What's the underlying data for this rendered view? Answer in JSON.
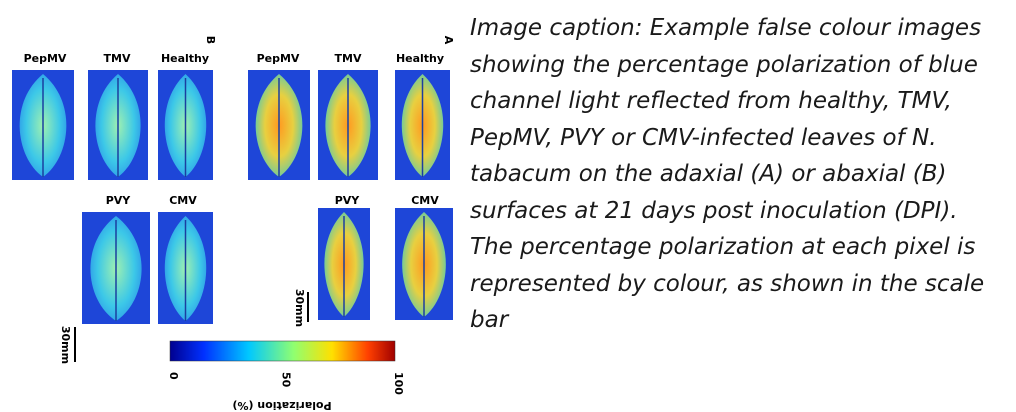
{
  "figure": {
    "panel_b": {
      "label": "B",
      "top_labels": [
        "PepMV",
        "TMV",
        "Healthy"
      ],
      "bottom_labels": [
        "PVY",
        "CMV"
      ],
      "scale": "30mm"
    },
    "panel_a": {
      "label": "A",
      "top_labels": [
        "PepMV",
        "TMV",
        "Healthy"
      ],
      "bottom_labels": [
        "PVY",
        "CMV"
      ],
      "scale": "30mm"
    },
    "colorbar": {
      "ticks": [
        0,
        50,
        100
      ],
      "label": "Polarization (%)"
    }
  },
  "caption_lines": [
    "Image caption: Example false colour images",
    "showing the percentage polarization of blue",
    "channel light reflected from healthy, TMV,",
    "PepMV, PVY or CMV-infected leaves of N.",
    "tabacum on the adaxial (A) or abaxial (B)",
    "surfaces at 21 days post inoculation (DPI).",
    "The percentage polarization at each pixel is",
    "represented by colour, as shown in the scale",
    "bar"
  ]
}
